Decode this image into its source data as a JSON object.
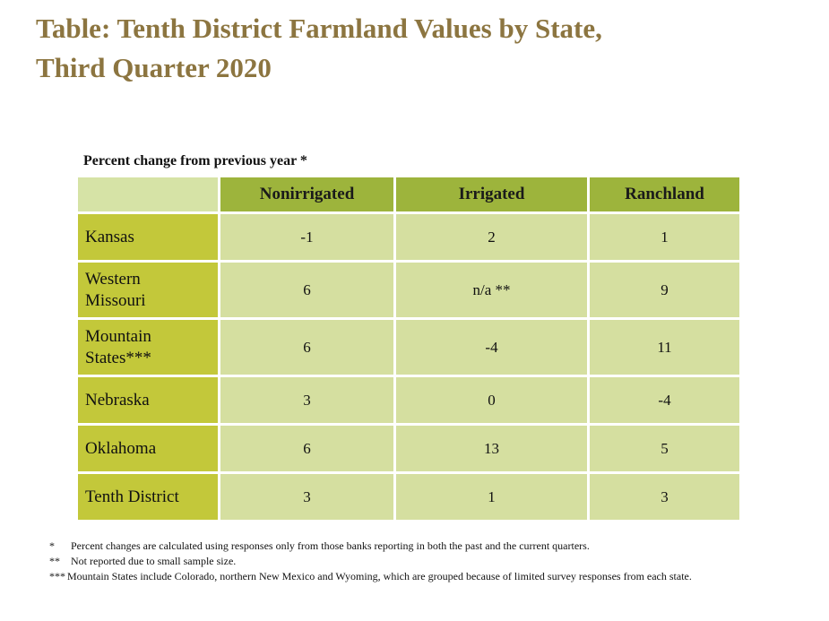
{
  "title_line1": "Table: Tenth District Farmland Values by State,",
  "title_line2": "Third Quarter 2020",
  "chart_data": {
    "type": "table",
    "caption": "Percent change from previous year *",
    "columns": [
      "",
      "Nonirrigated",
      "Irrigated",
      "Ranchland"
    ],
    "rows": [
      {
        "label_lines": [
          "Kansas"
        ],
        "values": [
          "-1",
          "2",
          "1"
        ]
      },
      {
        "label_lines": [
          "Western",
          "Missouri"
        ],
        "values": [
          "6",
          "n/a **",
          "9"
        ]
      },
      {
        "label_lines": [
          "Mountain",
          "States***"
        ],
        "values": [
          "6",
          "-4",
          "11"
        ]
      },
      {
        "label_lines": [
          "Nebraska"
        ],
        "values": [
          "3",
          "0",
          "-4"
        ]
      },
      {
        "label_lines": [
          "Oklahoma"
        ],
        "values": [
          "6",
          "13",
          "5"
        ]
      },
      {
        "label_lines": [
          "Tenth District"
        ],
        "values": [
          "3",
          "1",
          "3"
        ]
      }
    ]
  },
  "footnotes": [
    {
      "mark": "*",
      "text": "Percent changes are calculated using responses only from those banks reporting in both the past and the current quarters."
    },
    {
      "mark": "**",
      "text": "Not reported due to small sample size."
    },
    {
      "mark": "***",
      "text": "Mountain States include Colorado, northern New Mexico and Wyoming,  which are grouped because of limited  survey responses from each state."
    }
  ],
  "colors": {
    "title": "#8c7540",
    "header_fill": "#9db43c",
    "row_label_fill": "#c3c83a",
    "cell_fill": "#d5dfa0"
  }
}
